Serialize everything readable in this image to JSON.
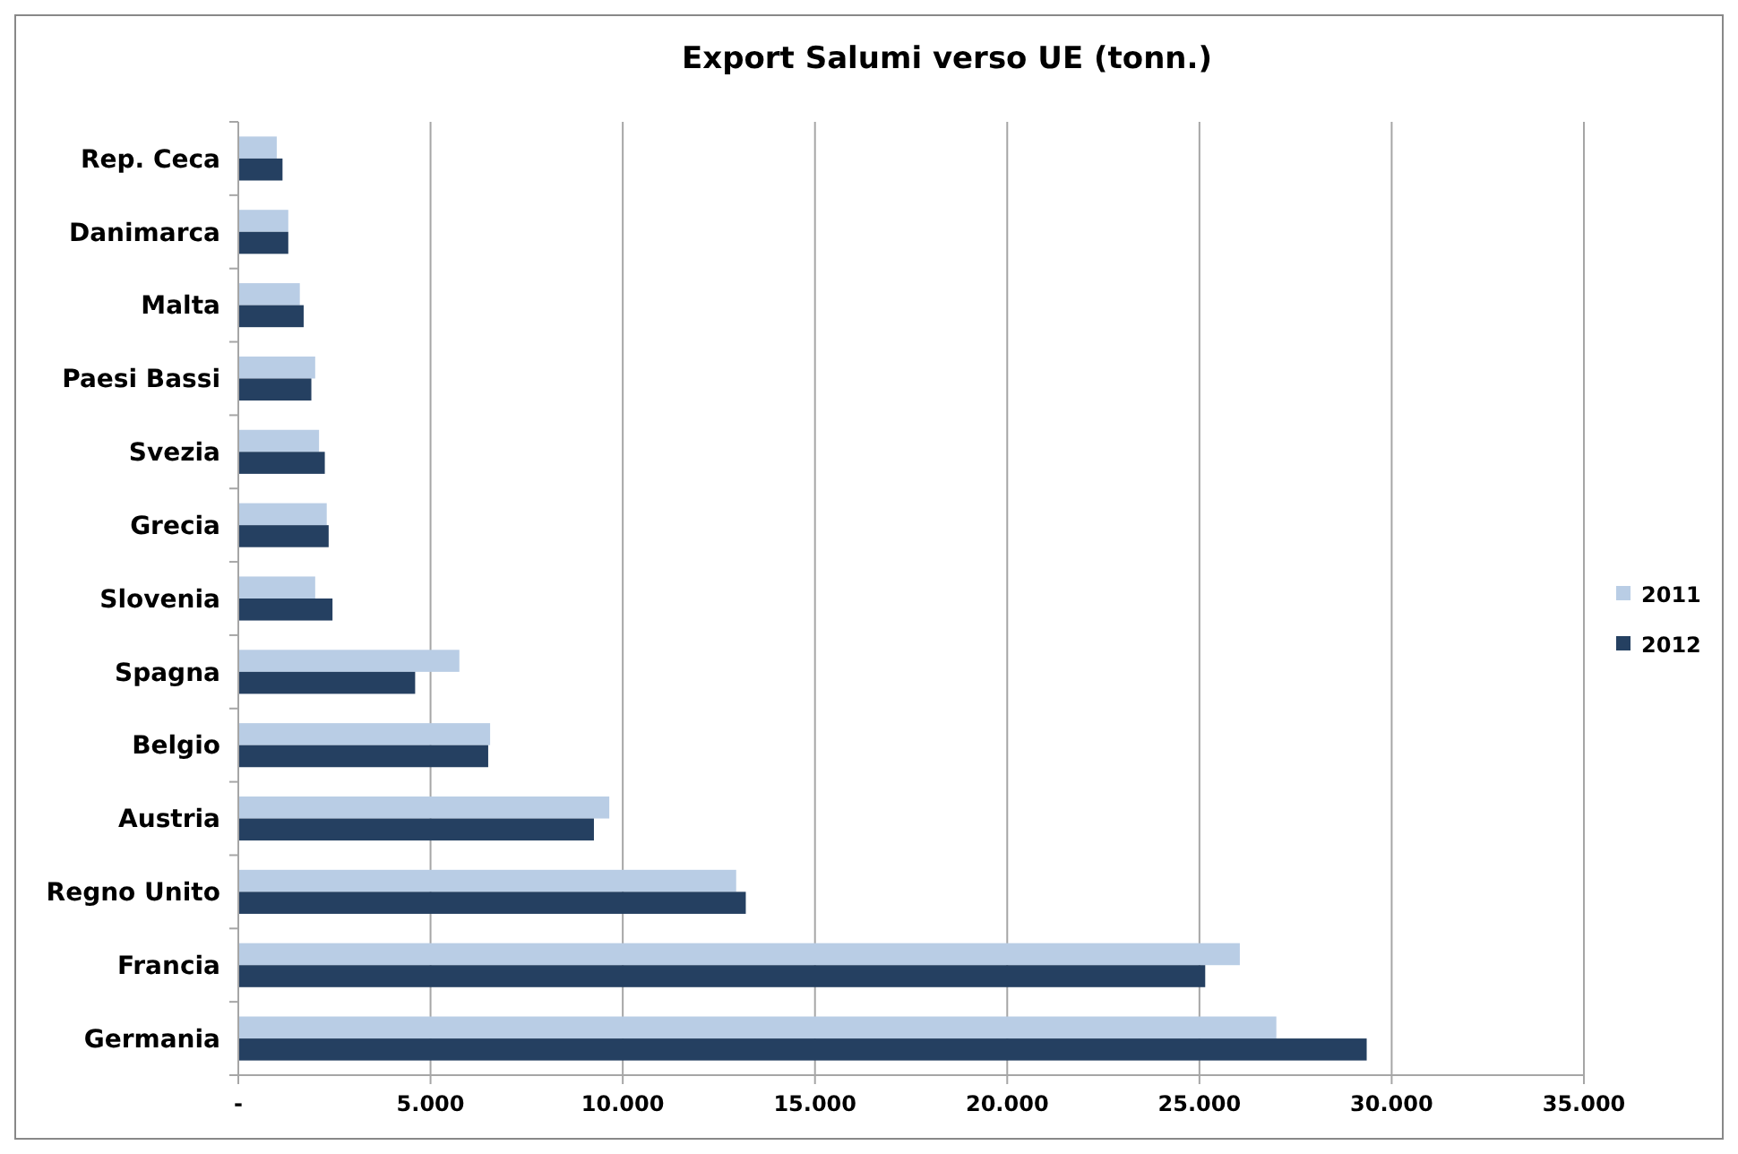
{
  "chart_data": {
    "type": "bar",
    "orientation": "horizontal",
    "title": "Export Salumi verso UE (tonn.)",
    "categories": [
      "Rep. Ceca",
      "Danimarca",
      "Malta",
      "Paesi Bassi",
      "Svezia",
      "Grecia",
      "Slovenia",
      "Spagna",
      "Belgio",
      "Austria",
      "Regno Unito",
      "Francia",
      "Germania"
    ],
    "series": [
      {
        "name": "2011",
        "color": "#b9cde5",
        "values": [
          1000,
          1300,
          1600,
          2000,
          2100,
          2300,
          2000,
          5750,
          6550,
          9650,
          12950,
          26050,
          27000
        ]
      },
      {
        "name": "2012",
        "color": "#254061",
        "values": [
          1150,
          1300,
          1700,
          1900,
          2250,
          2350,
          2450,
          4600,
          6500,
          9250,
          13200,
          25150,
          29350
        ]
      }
    ],
    "xlim": [
      0,
      35000
    ],
    "xticks": [
      {
        "value": 0,
        "label": "-"
      },
      {
        "value": 5000,
        "label": "5.000"
      },
      {
        "value": 10000,
        "label": "10.000"
      },
      {
        "value": 15000,
        "label": "15.000"
      },
      {
        "value": 20000,
        "label": "20.000"
      },
      {
        "value": 25000,
        "label": "25.000"
      },
      {
        "value": 30000,
        "label": "30.000"
      },
      {
        "value": 35000,
        "label": "35.000"
      }
    ],
    "grid": "x",
    "legend": "right"
  }
}
